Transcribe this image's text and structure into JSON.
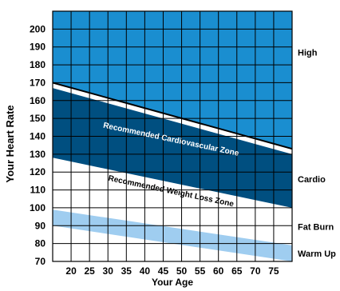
{
  "chart_data": {
    "type": "area",
    "title": "",
    "xlabel": "Your Age",
    "ylabel": "Your Heart Rate",
    "xlim": [
      15,
      80
    ],
    "ylim": [
      70,
      210
    ],
    "x_ticks": [
      20,
      25,
      30,
      35,
      40,
      45,
      50,
      55,
      60,
      65,
      70,
      75
    ],
    "y_ticks": [
      70,
      80,
      90,
      100,
      110,
      120,
      130,
      140,
      150,
      160,
      170,
      180,
      190,
      200
    ],
    "grid": true,
    "zones": [
      {
        "name": "High",
        "lower": [
          [
            15,
            170
          ],
          [
            80,
            133
          ]
        ],
        "upper": [
          [
            15,
            210
          ],
          [
            80,
            210
          ]
        ],
        "color": "#1a8ed0"
      },
      {
        "name": "Cardio",
        "lower": [
          [
            15,
            128
          ],
          [
            80,
            100
          ]
        ],
        "upper": [
          [
            15,
            167
          ],
          [
            80,
            130
          ]
        ],
        "color": "#004f80"
      },
      {
        "name": "Fat Burn",
        "lower": [
          [
            15,
            128
          ],
          [
            80,
            100
          ]
        ],
        "upper": [
          [
            15,
            128
          ],
          [
            80,
            100
          ]
        ],
        "color": "#ffffff"
      },
      {
        "name": "Warm Up",
        "lower": [
          [
            15,
            90
          ],
          [
            80,
            70
          ]
        ],
        "upper": [
          [
            15,
            99
          ],
          [
            80,
            79
          ]
        ],
        "color": "#9fcdf0"
      }
    ],
    "annotations": [
      {
        "text": "Recommended Cardiovascular Zone",
        "x": 47,
        "y": 137
      },
      {
        "text": "Recommended Weight Loss Zone",
        "x": 47,
        "y": 108
      }
    ]
  }
}
